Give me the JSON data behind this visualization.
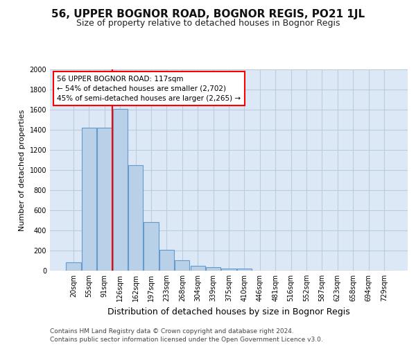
{
  "title1": "56, UPPER BOGNOR ROAD, BOGNOR REGIS, PO21 1JL",
  "title2": "Size of property relative to detached houses in Bognor Regis",
  "xlabel": "Distribution of detached houses by size in Bognor Regis",
  "ylabel": "Number of detached properties",
  "categories": [
    "20sqm",
    "55sqm",
    "91sqm",
    "126sqm",
    "162sqm",
    "197sqm",
    "233sqm",
    "268sqm",
    "304sqm",
    "339sqm",
    "375sqm",
    "410sqm",
    "446sqm",
    "481sqm",
    "516sqm",
    "552sqm",
    "587sqm",
    "623sqm",
    "658sqm",
    "694sqm",
    "729sqm"
  ],
  "values": [
    80,
    1420,
    1420,
    1610,
    1050,
    480,
    205,
    105,
    45,
    35,
    20,
    20,
    0,
    0,
    0,
    0,
    0,
    0,
    0,
    0,
    0
  ],
  "bar_color": "#b8d0e8",
  "bar_edge_color": "#6699cc",
  "background_color": "#ffffff",
  "plot_bg_color": "#dce8f5",
  "grid_color": "#bbccdd",
  "annotation_line1": "56 UPPER BOGNOR ROAD: 117sqm",
  "annotation_line2": "← 54% of detached houses are smaller (2,702)",
  "annotation_line3": "45% of semi-detached houses are larger (2,265) →",
  "footer1": "Contains HM Land Registry data © Crown copyright and database right 2024.",
  "footer2": "Contains public sector information licensed under the Open Government Licence v3.0.",
  "ylim": [
    0,
    2000
  ],
  "yticks": [
    0,
    200,
    400,
    600,
    800,
    1000,
    1200,
    1400,
    1600,
    1800,
    2000
  ],
  "red_line_x": 2.5,
  "title1_fontsize": 11,
  "title2_fontsize": 9,
  "ylabel_fontsize": 8,
  "xlabel_fontsize": 9,
  "tick_fontsize": 7,
  "footer_fontsize": 6.5
}
